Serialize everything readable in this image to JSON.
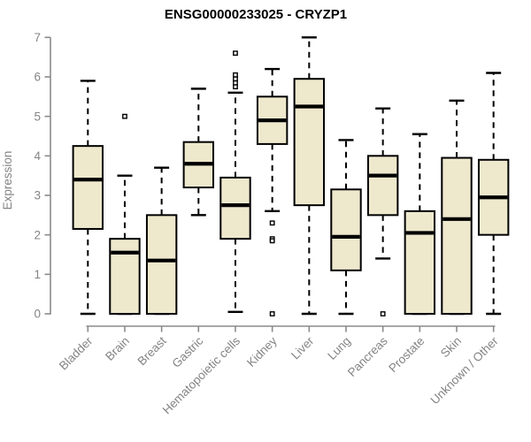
{
  "chart_data": {
    "type": "boxplot",
    "title": "ENSG00000233025 - CRYZP1",
    "ylabel": "Expression",
    "xlabel": "",
    "ylim": [
      0,
      7
    ],
    "yticks": [
      0,
      1,
      2,
      3,
      4,
      5,
      6,
      7
    ],
    "grid": false,
    "legend_position": "none",
    "categories": [
      "Bladder",
      "Brain",
      "Breast",
      "Gastric",
      "Hematopoietic cells",
      "Kidney",
      "Liver",
      "Lung",
      "Pancreas",
      "Prostate",
      "Skin",
      "Unknown / Other"
    ],
    "boxes": [
      {
        "category": "Bladder",
        "whisker_low": 0,
        "q1": 2.15,
        "median": 3.4,
        "q3": 4.25,
        "whisker_high": 5.9,
        "outliers": []
      },
      {
        "category": "Brain",
        "whisker_low": 0,
        "q1": 0,
        "median": 1.55,
        "q3": 1.9,
        "whisker_high": 3.5,
        "outliers": [
          5.0
        ]
      },
      {
        "category": "Breast",
        "whisker_low": 0,
        "q1": 0,
        "median": 1.35,
        "q3": 2.5,
        "whisker_high": 3.7,
        "outliers": []
      },
      {
        "category": "Gastric",
        "whisker_low": 2.5,
        "q1": 3.2,
        "median": 3.8,
        "q3": 4.35,
        "whisker_high": 5.7,
        "outliers": []
      },
      {
        "category": "Hematopoietic cells",
        "whisker_low": 0.05,
        "q1": 1.9,
        "median": 2.75,
        "q3": 3.45,
        "whisker_high": 5.6,
        "outliers": [
          5.75,
          5.85,
          5.95,
          6.05,
          6.6
        ]
      },
      {
        "category": "Kidney",
        "whisker_low": 2.6,
        "q1": 4.3,
        "median": 4.9,
        "q3": 5.5,
        "whisker_high": 6.2,
        "outliers": [
          2.3,
          1.9,
          1.85,
          0
        ]
      },
      {
        "category": "Liver",
        "whisker_low": 0,
        "q1": 2.75,
        "median": 5.25,
        "q3": 5.95,
        "whisker_high": 7.0,
        "outliers": []
      },
      {
        "category": "Lung",
        "whisker_low": 0,
        "q1": 1.1,
        "median": 1.95,
        "q3": 3.15,
        "whisker_high": 4.4,
        "outliers": []
      },
      {
        "category": "Pancreas",
        "whisker_low": 1.4,
        "q1": 2.5,
        "median": 3.5,
        "q3": 4.0,
        "whisker_high": 5.2,
        "outliers": [
          0
        ]
      },
      {
        "category": "Prostate",
        "whisker_low": 0,
        "q1": 0,
        "median": 2.05,
        "q3": 2.6,
        "whisker_high": 4.55,
        "outliers": []
      },
      {
        "category": "Skin",
        "whisker_low": 0,
        "q1": 0,
        "median": 2.4,
        "q3": 3.95,
        "whisker_high": 5.4,
        "outliers": []
      },
      {
        "category": "Unknown / Other",
        "whisker_low": 0,
        "q1": 2.0,
        "median": 2.95,
        "q3": 3.9,
        "whisker_high": 6.1,
        "outliers": []
      }
    ],
    "colors": {
      "box_fill": "#EEE8CD",
      "box_stroke": "#000000",
      "median": "#000000",
      "whisker": "#000000",
      "outlier_fill": "#FFFFFF",
      "outlier_stroke": "#000000",
      "axis": "#8A8A8A",
      "tick_label": "#848484",
      "title": "#000000",
      "background": "#FFFFFF"
    }
  }
}
